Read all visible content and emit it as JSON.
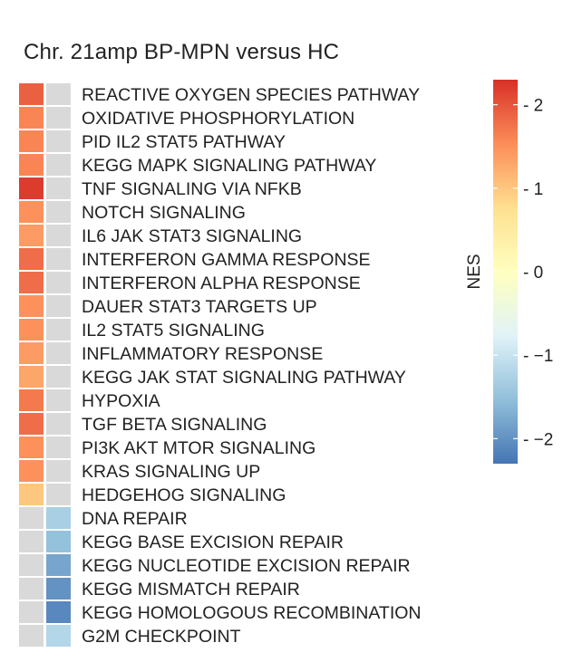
{
  "chart_data": {
    "type": "heatmap",
    "title": "Chr. 21amp BP-MPN versus HC",
    "rows": [
      "REACTIVE OXYGEN SPECIES PATHWAY",
      "OXIDATIVE PHOSPHORYLATION",
      "PID IL2 STAT5 PATHWAY",
      "KEGG MAPK SIGNALING PATHWAY",
      "TNF SIGNALING VIA NFKB",
      "NOTCH SIGNALING",
      "IL6 JAK STAT3 SIGNALING",
      "INTERFERON GAMMA RESPONSE",
      "INTERFERON ALPHA RESPONSE",
      "DAUER STAT3 TARGETS UP",
      "IL2 STAT5 SIGNALING",
      "INFLAMMATORY RESPONSE",
      "KEGG JAK STAT SIGNALING PATHWAY",
      "HYPOXIA",
      "TGF BETA SIGNALING",
      "PI3K AKT MTOR SIGNALING",
      "KRAS SIGNALING UP",
      "HEDGEHOG SIGNALING",
      "DNA REPAIR",
      "KEGG BASE EXCISION REPAIR",
      "KEGG NUCLEOTIDE EXCISION REPAIR",
      "KEGG MISMATCH REPAIR",
      "KEGG HOMOLOGOUS RECOMBINATION",
      "G2M CHECKPOINT"
    ],
    "columns": 2,
    "values": [
      [
        1.9,
        null
      ],
      [
        1.6,
        null
      ],
      [
        1.6,
        null
      ],
      [
        1.6,
        null
      ],
      [
        2.2,
        null
      ],
      [
        1.5,
        null
      ],
      [
        1.4,
        null
      ],
      [
        1.8,
        null
      ],
      [
        1.8,
        null
      ],
      [
        1.5,
        null
      ],
      [
        1.5,
        null
      ],
      [
        1.4,
        null
      ],
      [
        1.3,
        null
      ],
      [
        1.7,
        null
      ],
      [
        1.8,
        null
      ],
      [
        1.5,
        null
      ],
      [
        1.5,
        null
      ],
      [
        1.0,
        null
      ],
      [
        null,
        -1.3
      ],
      [
        null,
        -1.5
      ],
      [
        null,
        -1.8
      ],
      [
        null,
        -2.0
      ],
      [
        null,
        -2.1
      ],
      [
        null,
        -1.2
      ]
    ],
    "missing_color": "#d9d9d9",
    "colorbar": {
      "label": "NES",
      "range": [
        -2.3,
        2.3
      ],
      "ticks": [
        2,
        1,
        0,
        -1,
        -2
      ],
      "tick_labels": [
        "2",
        "1",
        "0",
        "−1",
        "−2"
      ],
      "palette": [
        "#4575b4",
        "#91bfdb",
        "#e0f3f8",
        "#ffffbf",
        "#fee090",
        "#fc8d59",
        "#d73027"
      ]
    }
  }
}
